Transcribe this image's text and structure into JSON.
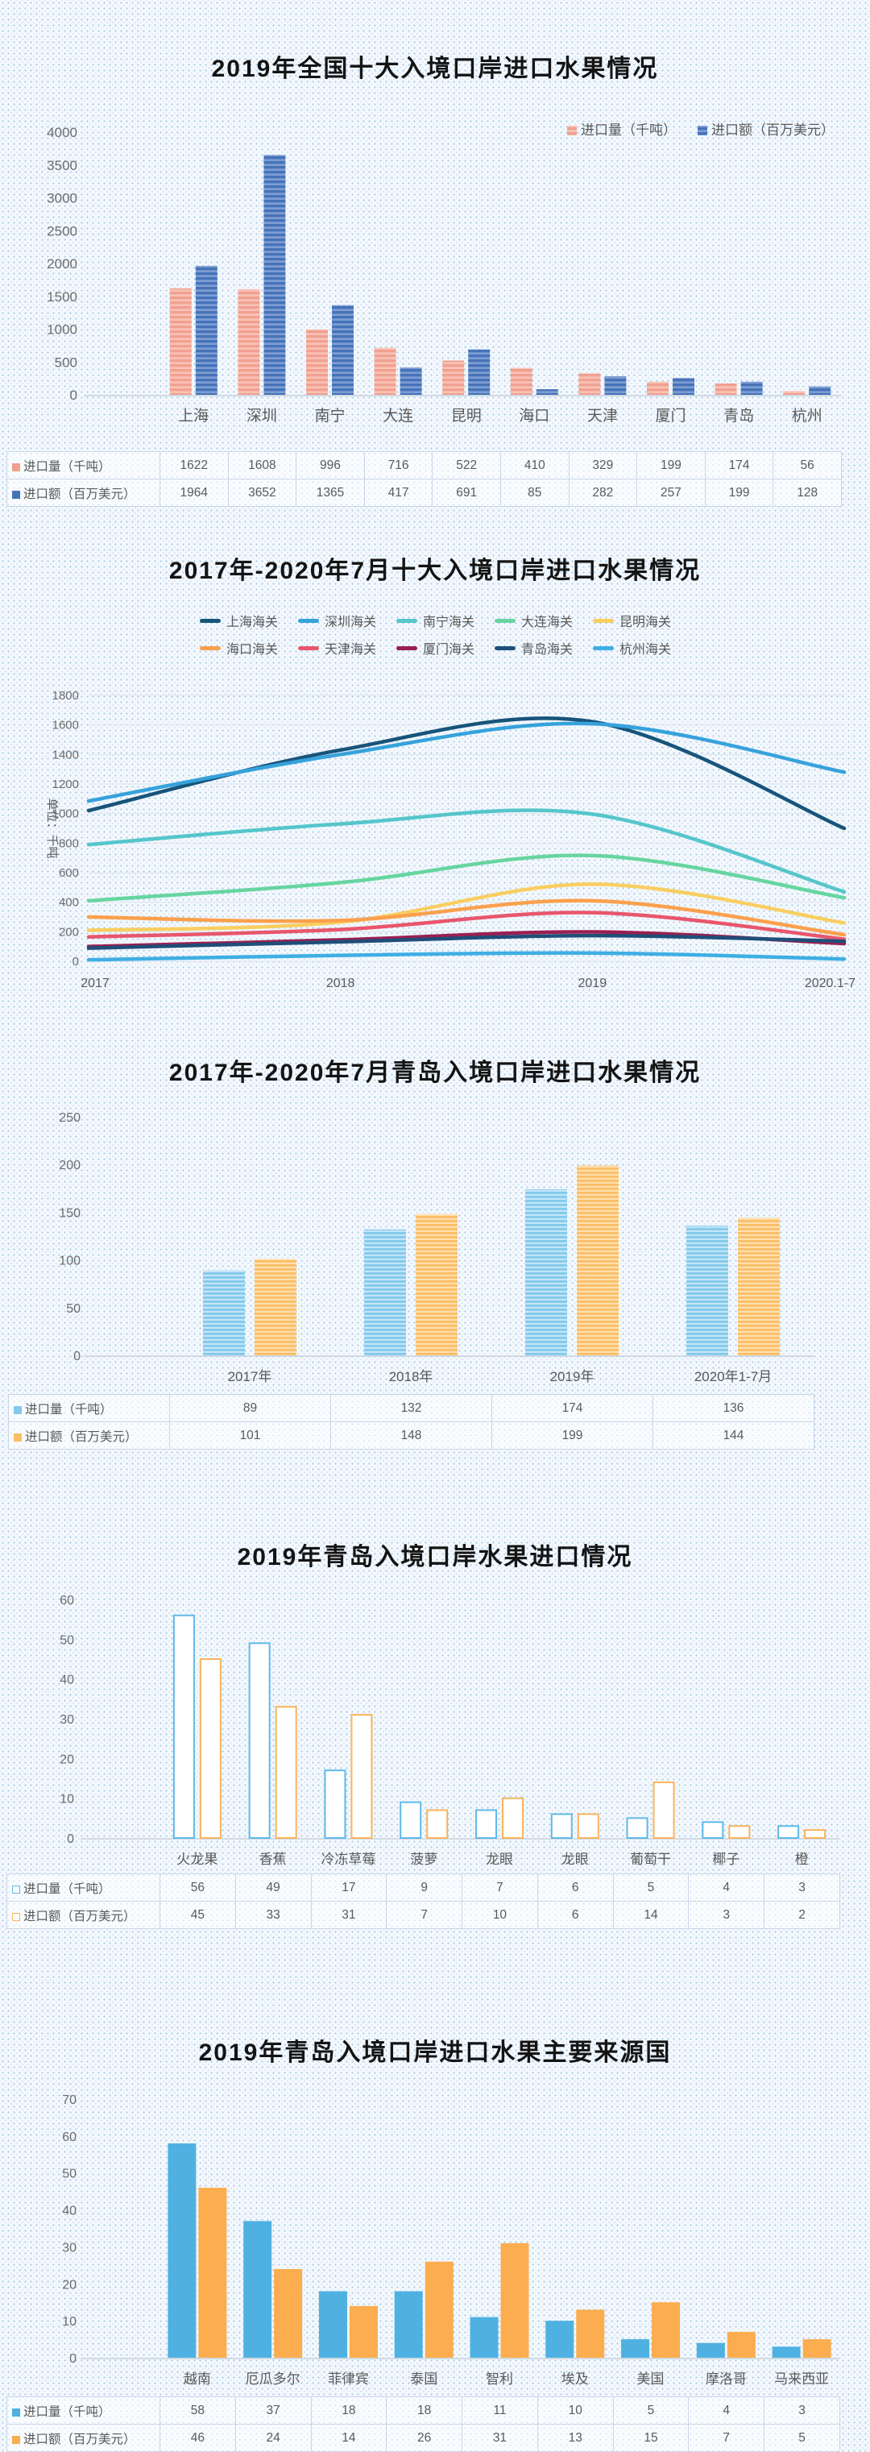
{
  "chart_data": [
    {
      "type": "bar",
      "title": "2019年全国十大入境口岸进口水果情况",
      "categories": [
        "上海",
        "深圳",
        "南宁",
        "大连",
        "昆明",
        "海口",
        "天津",
        "厦门",
        "青岛",
        "杭州"
      ],
      "series": [
        {
          "name": "进口量（千吨）",
          "values": [
            1622,
            1608,
            996,
            716,
            522,
            410,
            329,
            199,
            174,
            56
          ],
          "color": "#F1A090",
          "stripe": "#F8C2B6"
        },
        {
          "name": "进口额（百万美元）",
          "values": [
            1964,
            3652,
            1365,
            417,
            691,
            85,
            282,
            257,
            199,
            128
          ],
          "color": "#4573B9",
          "stripe": "#7E9DD2"
        }
      ],
      "ylim": [
        0,
        4000
      ],
      "ytick": 500,
      "style": "striped",
      "legend": "top-right",
      "table": true
    },
    {
      "type": "line",
      "title": "2017年-2020年7月十大入境口岸进口水果情况",
      "x": [
        "2017",
        "2018",
        "2019",
        "2020.1-7"
      ],
      "ylabel": "单位：千吨",
      "ylim": [
        0,
        1800
      ],
      "ytick": 200,
      "grid": true,
      "legend": "top",
      "series": [
        {
          "name": "上海海关",
          "color": "#17547A",
          "values": [
            1020,
            1430,
            1622,
            900
          ]
        },
        {
          "name": "深圳海关",
          "color": "#36A2DB",
          "values": [
            1085,
            1400,
            1608,
            1280
          ]
        },
        {
          "name": "南宁海关",
          "color": "#55C6CB",
          "values": [
            790,
            930,
            996,
            470
          ]
        },
        {
          "name": "大连海关",
          "color": "#67D5A0",
          "values": [
            410,
            533,
            716,
            430
          ]
        },
        {
          "name": "昆明海关",
          "color": "#F9CE61",
          "values": [
            210,
            265,
            522,
            260
          ]
        },
        {
          "name": "海口海关",
          "color": "#FBA04C",
          "values": [
            300,
            277,
            410,
            180
          ]
        },
        {
          "name": "天津海关",
          "color": "#E8566D",
          "values": [
            165,
            215,
            329,
            150
          ]
        },
        {
          "name": "厦门海关",
          "color": "#9A1F50",
          "values": [
            100,
            145,
            199,
            120
          ]
        },
        {
          "name": "青岛海关",
          "color": "#1F4E79",
          "values": [
            89,
            132,
            174,
            136
          ]
        },
        {
          "name": "杭州海关",
          "color": "#3FAEE4",
          "values": [
            10,
            40,
            56,
            15
          ]
        }
      ]
    },
    {
      "type": "bar",
      "title": "2017年-2020年7月青岛入境口岸进口水果情况",
      "categories": [
        "2017年",
        "2018年",
        "2019年",
        "2020年1-7月"
      ],
      "series": [
        {
          "name": "进口量（千吨）",
          "values": [
            89,
            132,
            174,
            136
          ],
          "color": "#82C9EC",
          "stripe": "#C2E5F8"
        },
        {
          "name": "进口额（百万美元）",
          "values": [
            101,
            148,
            199,
            144
          ],
          "color": "#FBBE66",
          "stripe": "#FDDFAE"
        }
      ],
      "ylim": [
        0,
        250
      ],
      "ytick": 50,
      "style": "striped",
      "table": true
    },
    {
      "type": "bar",
      "title": "2019年青岛入境口岸水果进口情况",
      "categories": [
        "火龙果",
        "香蕉",
        "冷冻草莓",
        "菠萝",
        "龙眼",
        "龙眼",
        "葡萄干",
        "椰子",
        "橙"
      ],
      "series": [
        {
          "name": "进口量（千吨）",
          "values": [
            56,
            49,
            17,
            9,
            7,
            6,
            5,
            4,
            3
          ],
          "color": "#5FBAE9"
        },
        {
          "name": "进口额（百万美元）",
          "values": [
            45,
            33,
            31,
            7,
            10,
            6,
            14,
            3,
            2
          ],
          "color": "#F9B45C"
        }
      ],
      "ylim": [
        0,
        60
      ],
      "ytick": 10,
      "style": "hollow",
      "table": true
    },
    {
      "type": "bar",
      "title": "2019年青岛入境口岸进口水果主要来源国",
      "categories": [
        "越南",
        "厄瓜多尔",
        "菲律宾",
        "泰国",
        "智利",
        "埃及",
        "美国",
        "摩洛哥",
        "马来西亚"
      ],
      "series": [
        {
          "name": "进口量（千吨）",
          "values": [
            58,
            37,
            18,
            18,
            11,
            10,
            5,
            4,
            3
          ],
          "color": "#4FB1E1"
        },
        {
          "name": "进口额（百万美元）",
          "values": [
            46,
            24,
            14,
            26,
            31,
            13,
            15,
            7,
            5
          ],
          "color": "#FBAD4F"
        }
      ],
      "ylim": [
        0,
        70
      ],
      "ytick": 10,
      "style": "solid",
      "table": true
    }
  ],
  "theme": {
    "title_color": "#141414",
    "axis_text_color": "#6b6b6b",
    "category_text_color": "#595959",
    "axis_line_color": "#c6cfdc",
    "grid_line_color": "#dde5f0",
    "table_border_color": "#c9d6e8"
  }
}
